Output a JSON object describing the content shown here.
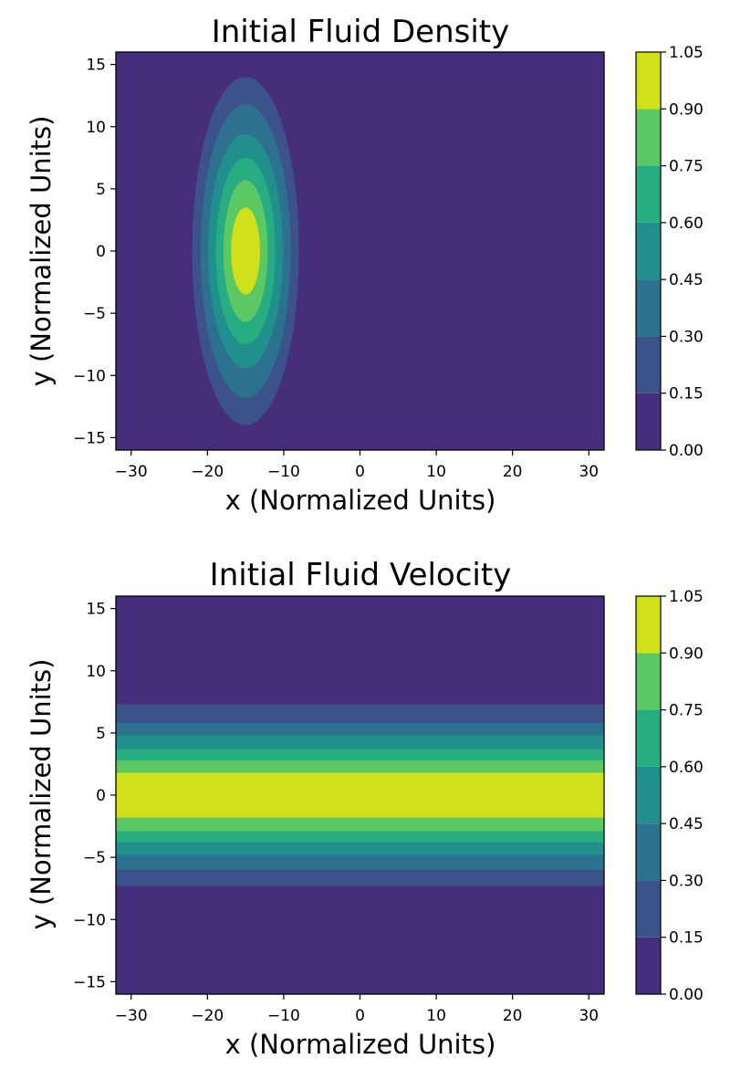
{
  "chart_data": [
    {
      "type": "contourf",
      "title": "Initial Fluid Density",
      "xlabel": "x (Normalized Units)",
      "ylabel": "y (Normalized Units)",
      "xlim": [
        -32,
        32
      ],
      "ylim": [
        -16,
        16
      ],
      "x_ticks": [
        -30,
        -20,
        -10,
        0,
        10,
        20,
        30
      ],
      "x_tick_labels": [
        "−30",
        "−20",
        "−10",
        "0",
        "10",
        "20",
        "30"
      ],
      "y_ticks": [
        -15,
        -10,
        -5,
        0,
        5,
        10,
        15
      ],
      "y_tick_labels": [
        "−15",
        "−10",
        "−5",
        "0",
        "5",
        "10",
        "15"
      ],
      "colormap": "viridis",
      "levels": [
        0.0,
        0.15,
        0.3,
        0.45,
        0.6,
        0.75,
        0.9,
        1.05
      ],
      "colorbar_tick_labels": [
        "0.00",
        "0.15",
        "0.30",
        "0.45",
        "0.60",
        "0.75",
        "0.90",
        "1.05"
      ],
      "level_colors": [
        "#472e7c",
        "#3b528b",
        "#2c728e",
        "#21908d",
        "#27ad81",
        "#5cc863",
        "#d0e11c"
      ],
      "bands": [
        {
          "level_index": 1,
          "cx": -15,
          "cy": 0,
          "rx": 7.0,
          "ry": 14.0
        },
        {
          "level_index": 2,
          "cx": -15,
          "cy": 0,
          "rx": 5.9,
          "ry": 11.8
        },
        {
          "level_index": 3,
          "cx": -15,
          "cy": 0,
          "rx": 4.9,
          "ry": 9.4
        },
        {
          "level_index": 4,
          "cx": -15,
          "cy": 0,
          "rx": 3.9,
          "ry": 7.5
        },
        {
          "level_index": 5,
          "cx": -15,
          "cy": 0,
          "rx": 2.9,
          "ry": 5.7
        },
        {
          "level_index": 6,
          "cx": -15,
          "cy": 0,
          "rx": 1.9,
          "ry": 3.5
        }
      ]
    },
    {
      "type": "contourf",
      "title": "Initial Fluid Velocity",
      "xlabel": "x (Normalized Units)",
      "ylabel": "y (Normalized Units)",
      "xlim": [
        -32,
        32
      ],
      "ylim": [
        -16,
        16
      ],
      "x_ticks": [
        -30,
        -20,
        -10,
        0,
        10,
        20,
        30
      ],
      "x_tick_labels": [
        "−30",
        "−20",
        "−10",
        "0",
        "10",
        "20",
        "30"
      ],
      "y_ticks": [
        -15,
        -10,
        -5,
        0,
        5,
        10,
        15
      ],
      "y_tick_labels": [
        "−15",
        "−10",
        "−5",
        "0",
        "5",
        "10",
        "15"
      ],
      "colormap": "viridis",
      "levels": [
        0.0,
        0.15,
        0.3,
        0.45,
        0.6,
        0.75,
        0.9,
        1.05
      ],
      "colorbar_tick_labels": [
        "0.00",
        "0.15",
        "0.30",
        "0.45",
        "0.60",
        "0.75",
        "0.90",
        "1.05"
      ],
      "level_colors": [
        "#472e7c",
        "#3b528b",
        "#2c728e",
        "#21908d",
        "#27ad81",
        "#5cc863",
        "#d0e11c"
      ],
      "bands": [
        {
          "level_index": 1,
          "y_min": -7.3,
          "y_max": 7.3
        },
        {
          "level_index": 2,
          "y_min": -6.0,
          "y_max": 5.8
        },
        {
          "level_index": 3,
          "y_min": -4.8,
          "y_max": 4.8
        },
        {
          "level_index": 4,
          "y_min": -3.8,
          "y_max": 3.7
        },
        {
          "level_index": 5,
          "y_min": -2.9,
          "y_max": 2.8
        },
        {
          "level_index": 6,
          "y_min": -1.8,
          "y_max": 1.8
        }
      ]
    }
  ]
}
